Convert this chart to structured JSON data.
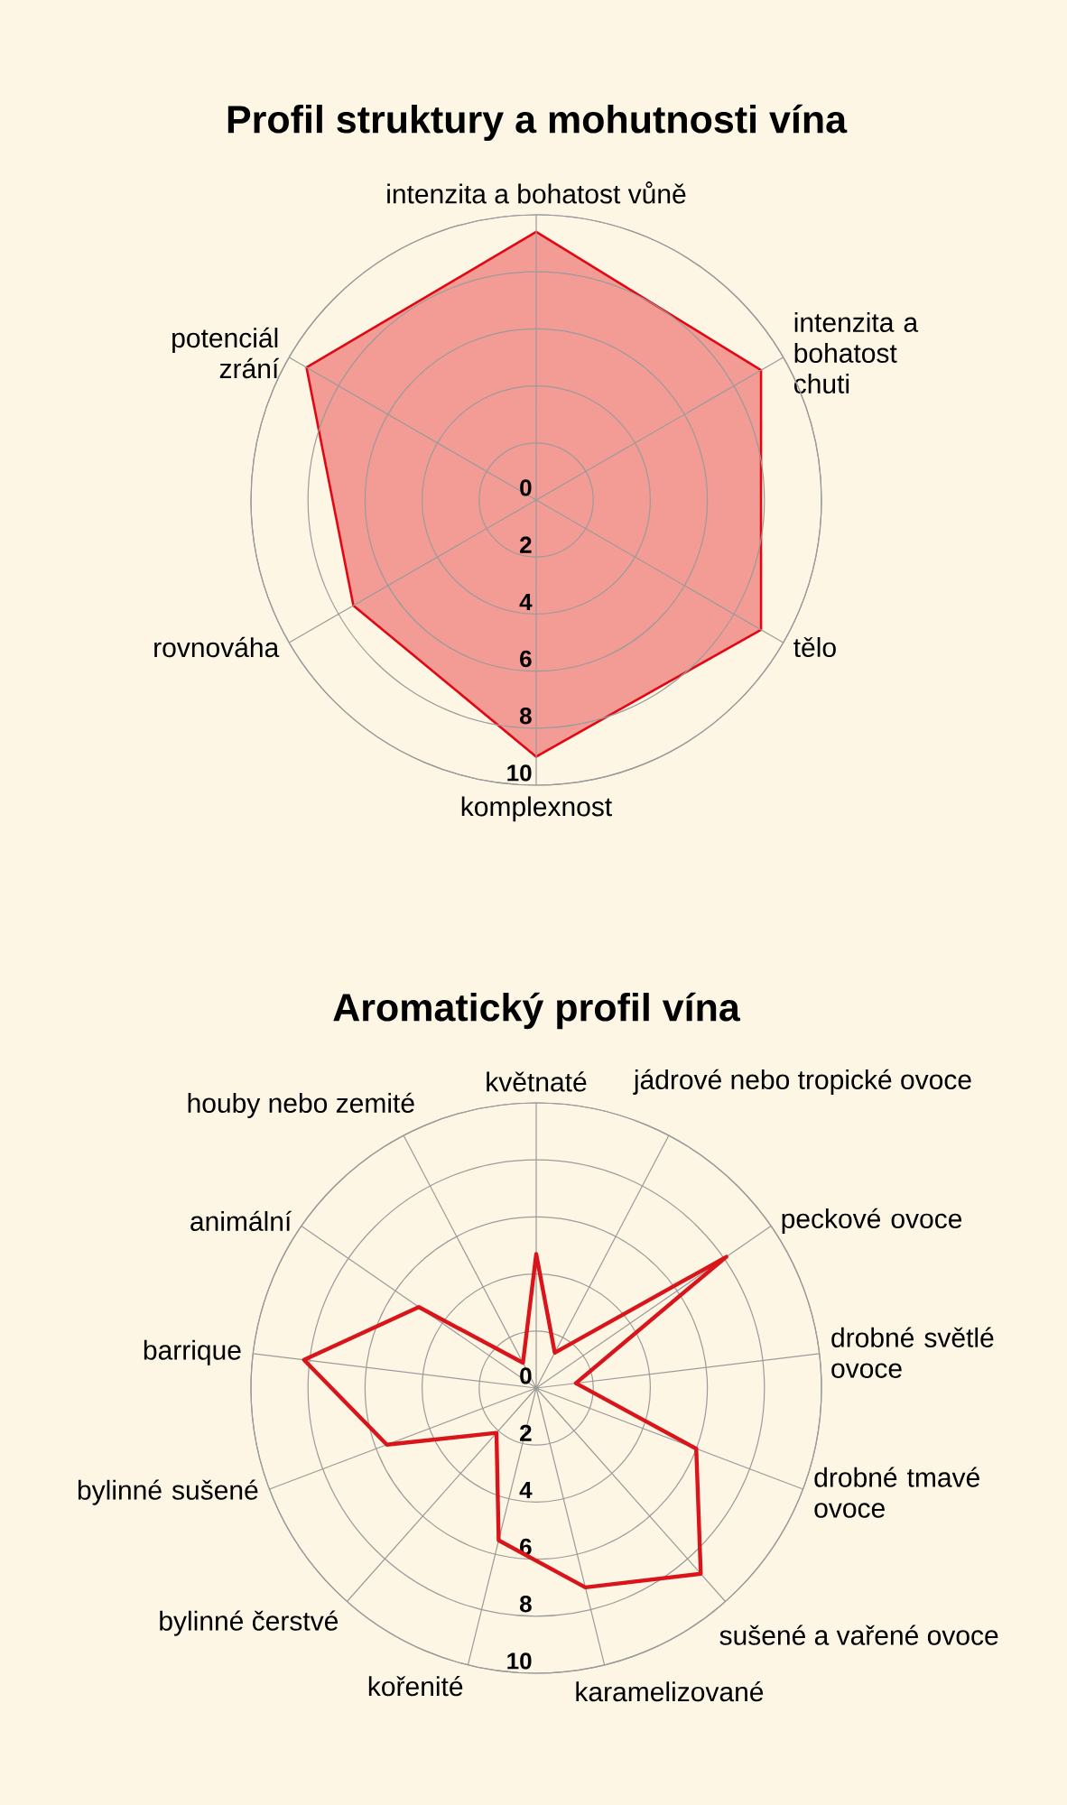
{
  "chart_data": [
    {
      "type": "radar",
      "title": "Profil struktury a mohutnosti vína",
      "categories": [
        "intenzita a bohatost vůně",
        "intenzita a bohatost chuti",
        "tělo",
        "komplexnost",
        "rovnováha",
        "potenciál zrání"
      ],
      "series": [
        {
          "color": "#e30613",
          "values": [
            9.4,
            9.1,
            9.1,
            9,
            7.4,
            9.3
          ]
        }
      ],
      "ylim": [
        0,
        10
      ],
      "yticks": [
        0,
        2,
        4,
        6,
        8,
        10
      ],
      "grid": true
    },
    {
      "type": "radar",
      "title": "Aromatický profil vína",
      "categories": [
        "květnaté",
        "jádrové nebo tropické ovoce",
        "peckové ovoce",
        "drobné světlé ovoce",
        "drobné tmavé ovoce",
        "sušené a vařené ovoce",
        "karamelizované",
        "kořenité",
        "bylinné čerstvé",
        "bylinné sušené",
        "barrique",
        "animální",
        "houby nebo zemité"
      ],
      "series": [
        {
          "color": "#d9141b",
          "values": [
            4.7,
            1.4,
            8.1,
            1.4,
            6,
            8.7,
            7.2,
            5.5,
            2.1,
            5.6,
            8.2,
            5,
            1
          ]
        }
      ],
      "ylim": [
        0,
        10
      ],
      "yticks": [
        0,
        2,
        4,
        6,
        8,
        10
      ],
      "grid": true
    }
  ]
}
